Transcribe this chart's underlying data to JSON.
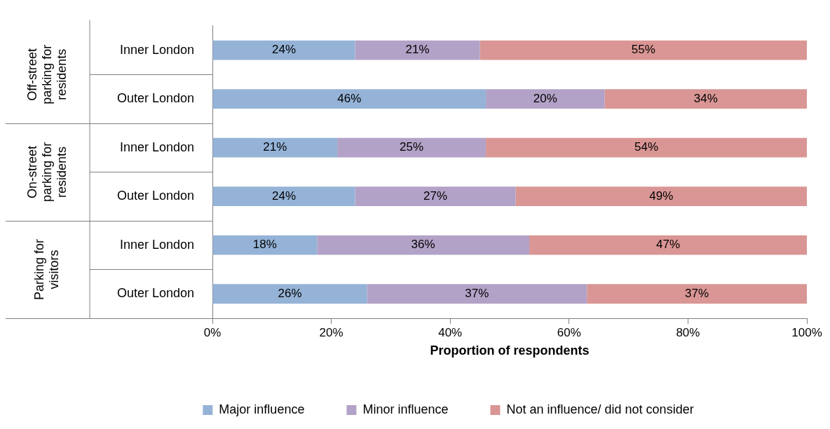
{
  "chart_data": {
    "type": "bar",
    "orientation": "horizontal",
    "stacked": true,
    "categories": [
      "Inner London",
      "Outer London",
      "Inner London",
      "Outer London",
      "Inner London",
      "Outer London"
    ],
    "series": [
      {
        "name": "Major influence",
        "color": "#95b3d7",
        "values": [
          24,
          46,
          21,
          24,
          17.6,
          26
        ],
        "value_labels": [
          "24%",
          "46%",
          "21%",
          "24%",
          "18%",
          "26%"
        ]
      },
      {
        "name": "Minor influence",
        "color": "#b3a2c7",
        "values": [
          21,
          20,
          25,
          27,
          35.7,
          37
        ],
        "value_labels": [
          "21%",
          "20%",
          "25%",
          "27%",
          "36%",
          "37%"
        ]
      },
      {
        "name": "Not an influence/ did not consider",
        "color": "#d99694",
        "values": [
          55,
          34,
          54,
          49,
          46.7,
          37
        ],
        "value_labels": [
          "55%",
          "34%",
          "54%",
          "49%",
          "47%",
          "37%"
        ]
      }
    ],
    "annotations": [
      "Off-street parking for residents",
      "On-street parking for residents",
      "Parking for visitors"
    ],
    "xlabel": "Proportion of respondents",
    "xlim": [
      0,
      100
    ],
    "xticks": [
      {
        "value": 0,
        "label": "0%"
      },
      {
        "value": 20,
        "label": "20%"
      },
      {
        "value": 40,
        "label": "40%"
      },
      {
        "value": 60,
        "label": "60%"
      },
      {
        "value": 80,
        "label": "80%"
      },
      {
        "value": 100,
        "label": "100%"
      }
    ],
    "grid": false,
    "legend": "bottom"
  }
}
